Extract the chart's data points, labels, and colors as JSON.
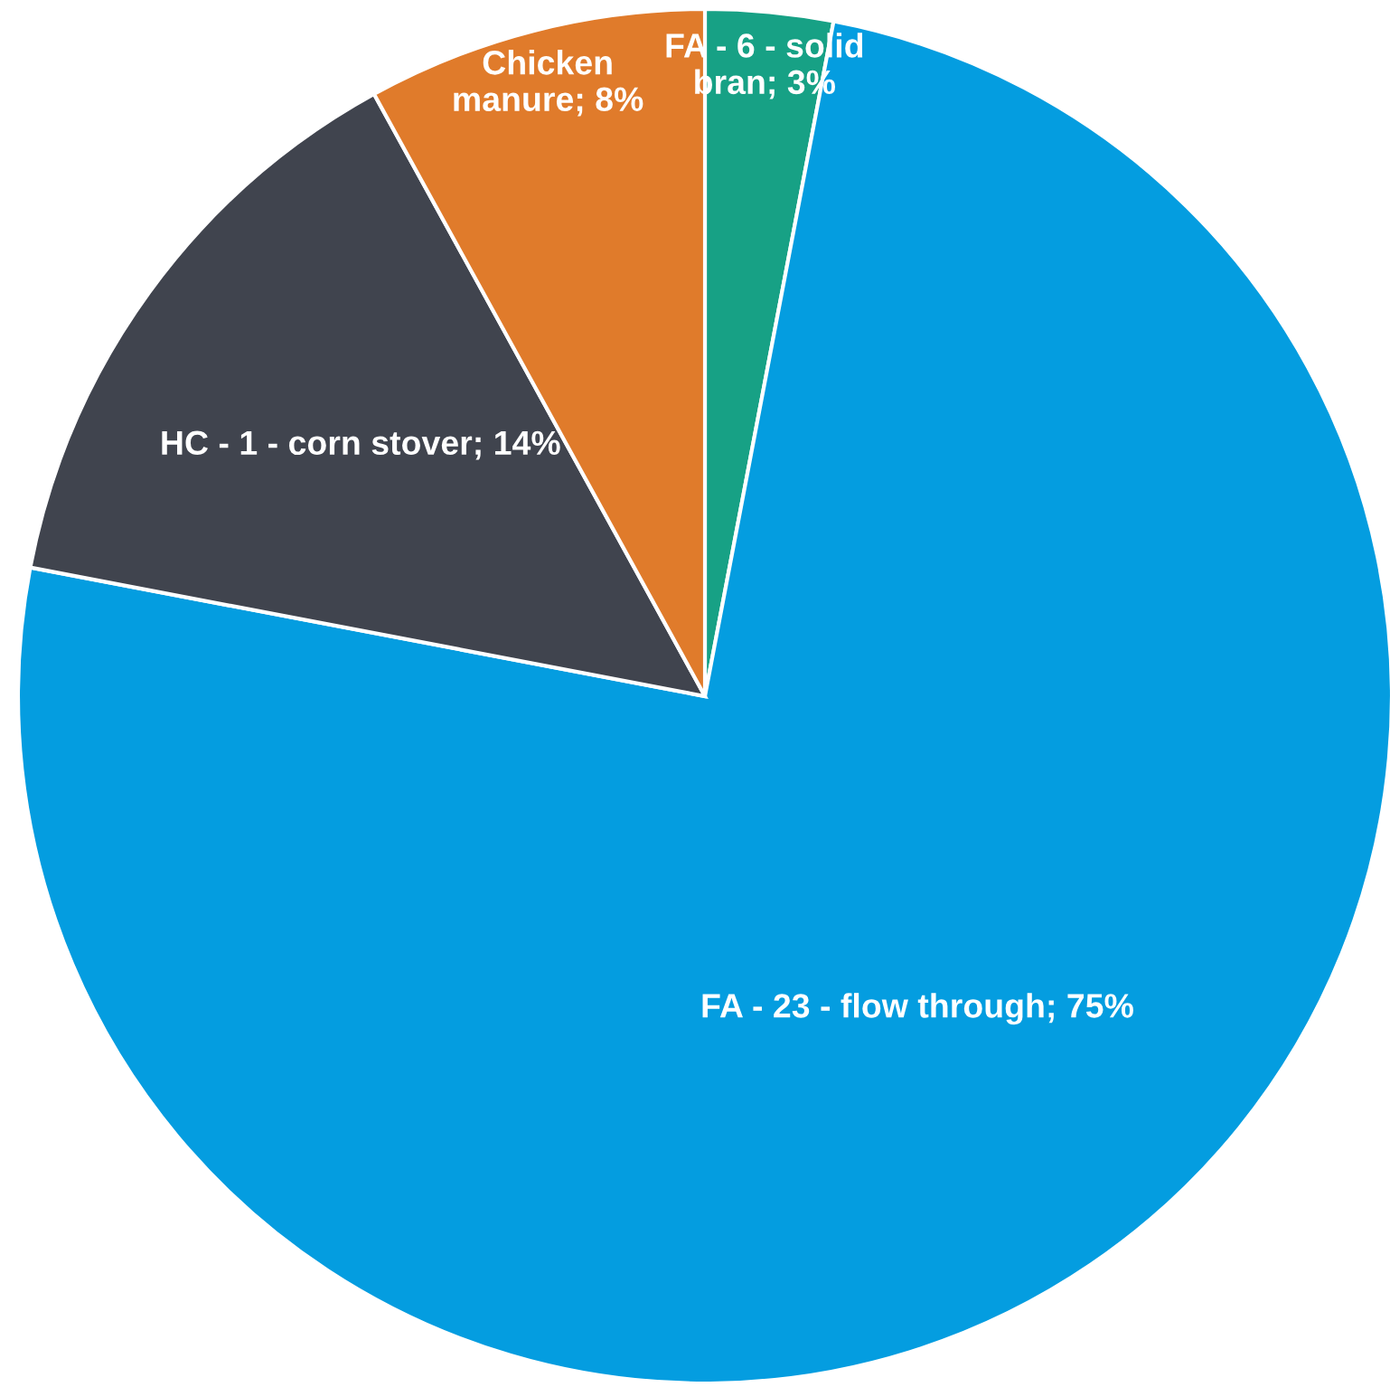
{
  "chart_data": {
    "type": "pie",
    "categories": [
      "FA - 6 - solid bran",
      "FA - 23 - flow through",
      "HC - 1 - corn stover",
      "Chicken manure"
    ],
    "values": [
      3,
      75,
      14,
      8
    ],
    "value_labels": [
      "3%",
      "75%",
      "14%",
      "8%"
    ],
    "colors": [
      "#17a185",
      "#049de0",
      "#40444e",
      "#e07b2b"
    ]
  }
}
